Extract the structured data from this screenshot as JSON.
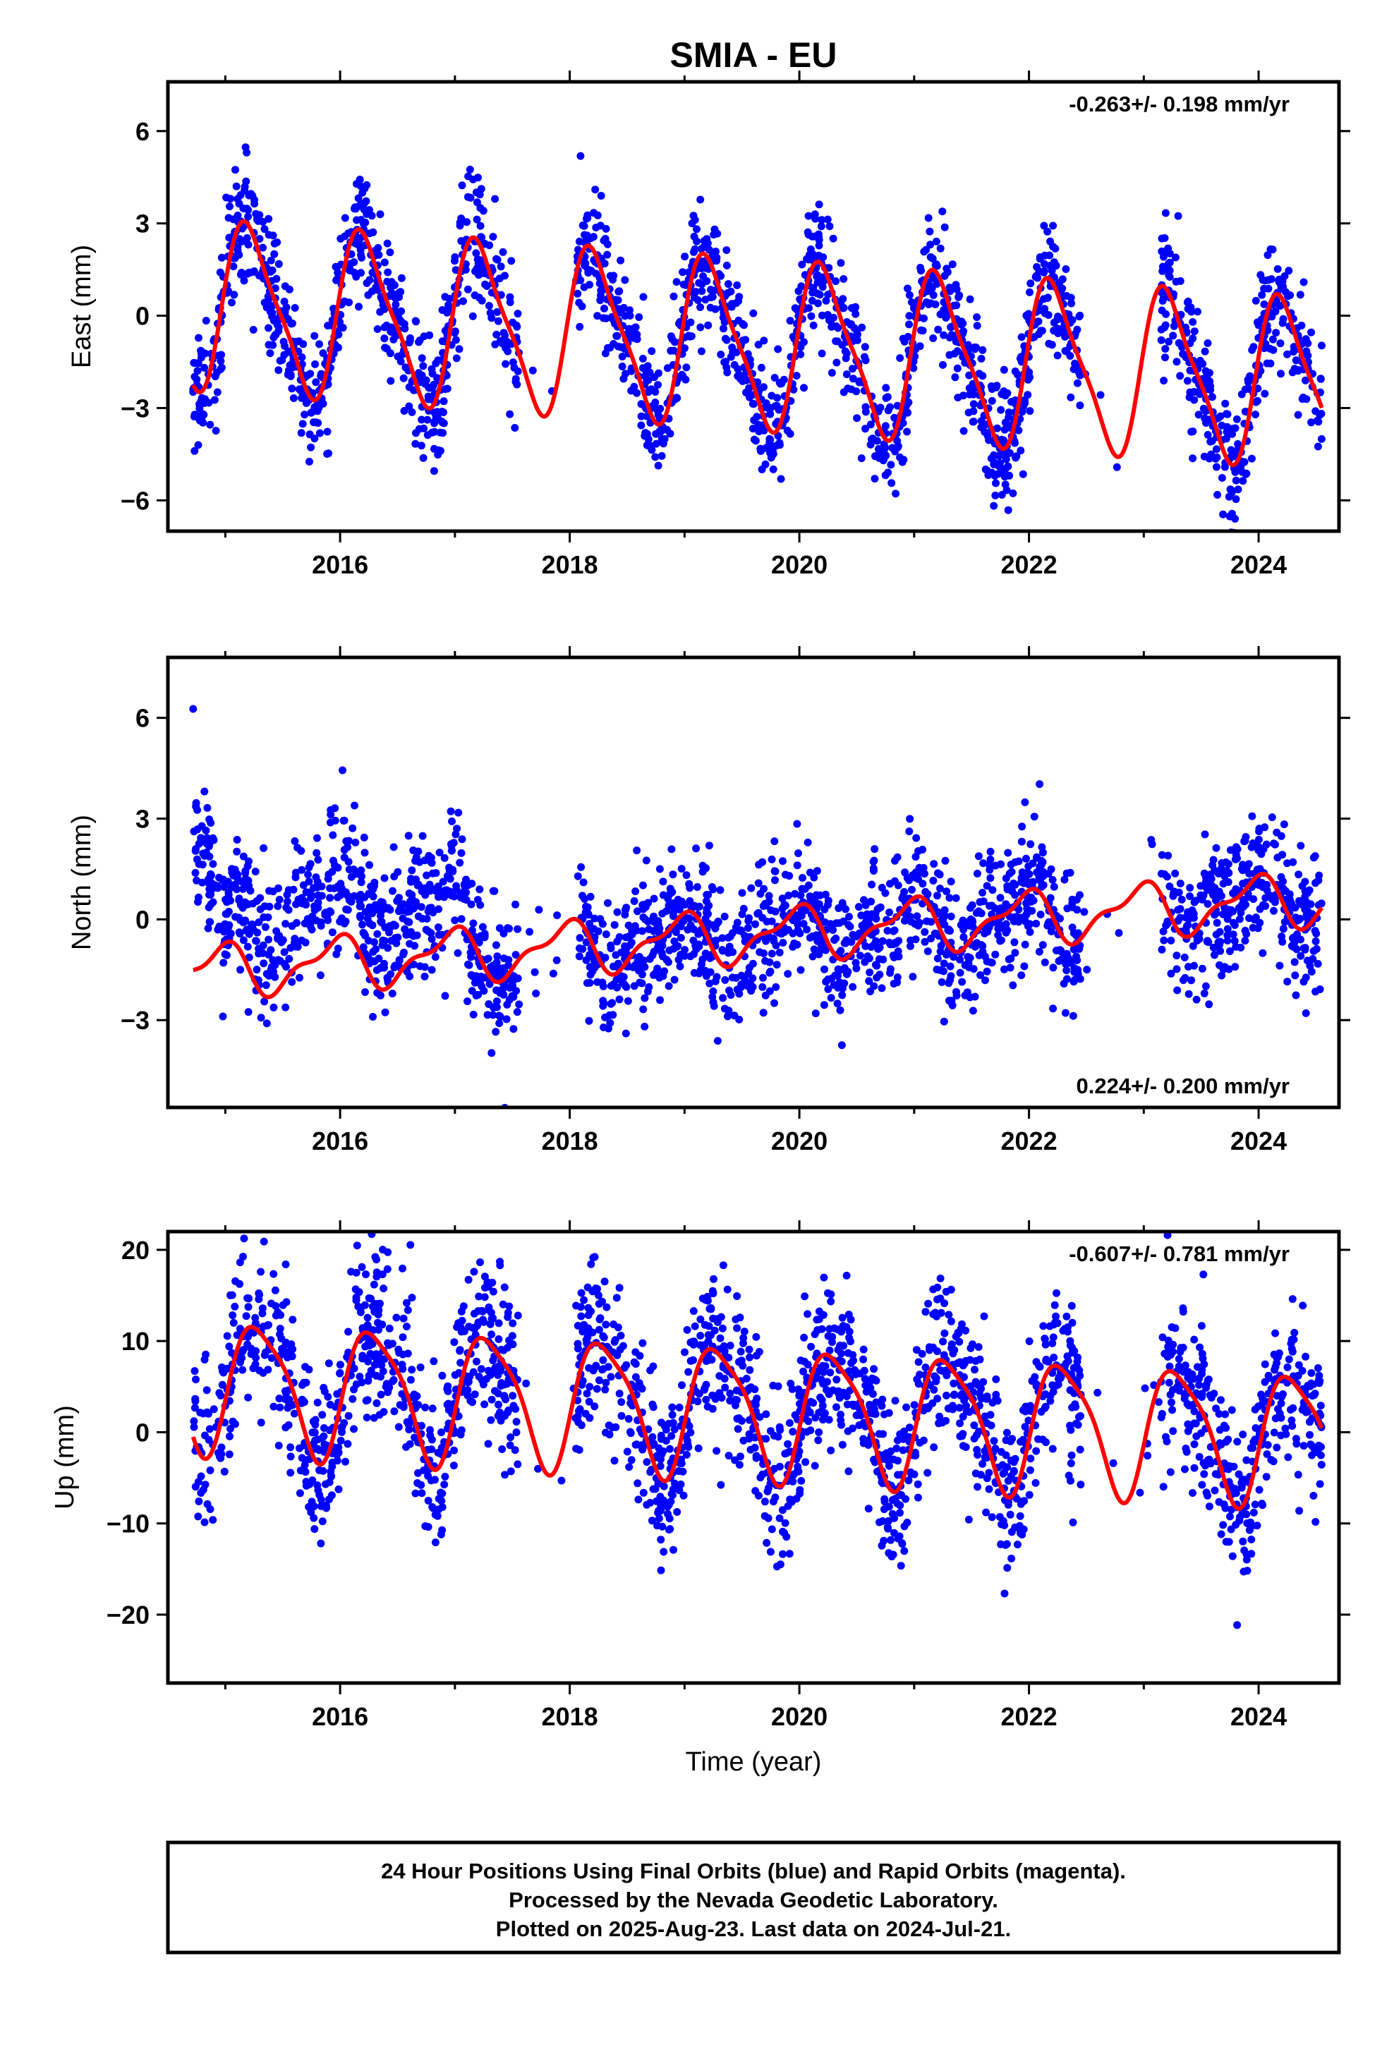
{
  "title": "SMIA - EU",
  "xlabel": "Time (year)",
  "footer": [
    "24 Hour Positions Using Final Orbits (blue) and Rapid Orbits (magenta).",
    "Processed by the Nevada Geodetic Laboratory.",
    "Plotted on 2025-Aug-23. Last data on 2024-Jul-21."
  ],
  "colors": {
    "final_orbits": "#0000ff",
    "rapid_orbits": "#ff00ff",
    "model": "#ff0000",
    "frame": "#000000"
  },
  "chart_data": [
    {
      "type": "scatter",
      "name": "east",
      "ylabel": "East (mm)",
      "rate_text": "-0.263+/- 0.198 mm/yr",
      "rate_position": "top-right",
      "xlim": [
        2014.5,
        2024.7
      ],
      "ylim": [
        -7.0,
        7.6
      ],
      "xticks": [
        2016,
        2018,
        2020,
        2022,
        2024
      ],
      "yticks": [
        6,
        3,
        0,
        -3,
        -6
      ],
      "ytick_labels": [
        "6",
        "3",
        "0",
        "−3",
        "−6"
      ],
      "data_start": 2014.72,
      "data_end": 2024.55,
      "model": {
        "slope_mm_per_yr": -0.263,
        "offset": -0.9,
        "annual_amp": 2.6,
        "annual_phase": 0.2,
        "semi_amp": 0.6,
        "semi_phase": 0.4
      },
      "gaps": [
        [
          2017.55,
          2018.05
        ],
        [
          2022.45,
          2023.15
        ]
      ],
      "scatter_sigma": 1.0,
      "early_bias": 0.0,
      "points": 2400
    },
    {
      "type": "scatter",
      "name": "north",
      "ylabel": "North (mm)",
      "rate_text": "0.224+/- 0.200 mm/yr",
      "rate_position": "bottom-right",
      "xlim": [
        2014.5,
        2024.7
      ],
      "ylim": [
        -5.6,
        7.8
      ],
      "xticks": [
        2016,
        2018,
        2020,
        2022,
        2024
      ],
      "yticks": [
        6,
        3,
        0,
        -3
      ],
      "ytick_labels": [
        "6",
        "3",
        "0",
        "−3"
      ],
      "data_start": 2014.72,
      "data_end": 2024.55,
      "model": {
        "slope_mm_per_yr": 0.224,
        "offset": -0.5,
        "annual_amp": 0.7,
        "annual_phase": 1.9,
        "semi_amp": 0.3,
        "semi_phase": 0.5
      },
      "gaps": [
        [
          2017.55,
          2018.05
        ],
        [
          2022.45,
          2023.15
        ]
      ],
      "scatter_sigma": 1.0,
      "early_bias": 4.5,
      "points": 2400
    },
    {
      "type": "scatter",
      "name": "up",
      "ylabel": "Up (mm)",
      "rate_text": "-0.607+/- 0.781 mm/yr",
      "rate_position": "top-right",
      "xlim": [
        2014.5,
        2024.7
      ],
      "ylim": [
        -27.5,
        22
      ],
      "xticks": [
        2016,
        2018,
        2020,
        2022,
        2024
      ],
      "yticks": [
        20,
        10,
        0,
        -10,
        -20
      ],
      "ytick_labels": [
        "20",
        "10",
        "0",
        "−10",
        "−20"
      ],
      "data_start": 2014.72,
      "data_end": 2024.55,
      "model": {
        "slope_mm_per_yr": -0.607,
        "offset": 2.5,
        "annual_amp": 7.0,
        "annual_phase": -0.3,
        "semi_amp": 1.5,
        "semi_phase": 0.2
      },
      "gaps": [
        [
          2017.55,
          2018.05
        ],
        [
          2022.45,
          2023.15
        ]
      ],
      "scatter_sigma": 4.5,
      "early_bias": 0.0,
      "points": 2400
    }
  ]
}
